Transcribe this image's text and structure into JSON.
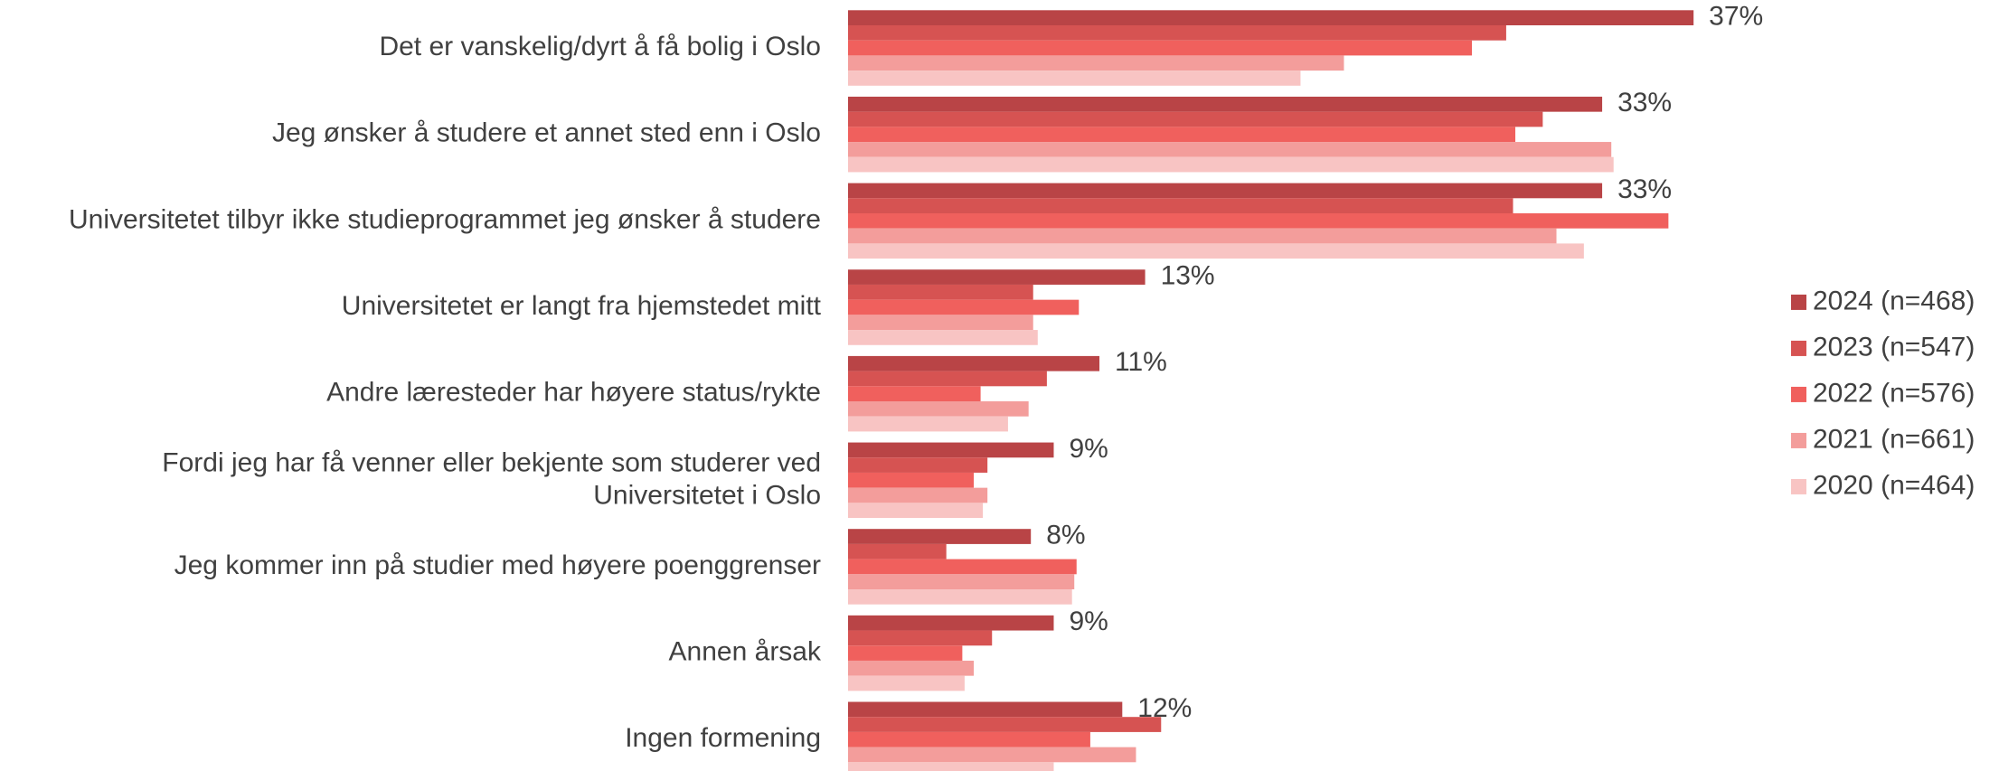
{
  "chart_data": {
    "type": "hbar",
    "categories": [
      "Det er vanskelig/dyrt å få bolig i Oslo",
      "Jeg ønsker å studere et annet sted enn i Oslo",
      "Universitetet tilbyr ikke studieprogrammet jeg ønsker å studere",
      "Universitetet er langt fra hjemstedet mitt",
      "Andre læresteder har høyere status/rykte",
      "Fordi jeg har få venner eller bekjente som studerer ved\nUniversitetet i Oslo",
      "Jeg kommer inn på studier med høyere poenggrenser",
      "Annen årsak",
      "Ingen formening"
    ],
    "xlim": [
      0,
      40
    ],
    "legend": "right",
    "series": [
      {
        "name": "2024 (n=468)",
        "color": "#b94446",
        "values": [
          37,
          33,
          33,
          13,
          11,
          9,
          8,
          9,
          12
        ],
        "value_labels": [
          "37%",
          "33%",
          "33%",
          "13%",
          "11%",
          "9%",
          "8%",
          "9%",
          "12%"
        ]
      },
      {
        "name": "2023 (n=547)",
        "color": "#d65352",
        "values": [
          28.8,
          30.4,
          29.1,
          8.1,
          8.7,
          6.1,
          4.3,
          6.3,
          13.7
        ]
      },
      {
        "name": "2022 (n=576)",
        "color": "#f0605d",
        "values": [
          27.3,
          29.2,
          35.9,
          10.1,
          5.8,
          5.5,
          10.0,
          5.0,
          10.6
        ]
      },
      {
        "name": "2021 (n=661)",
        "color": "#f39d9b",
        "values": [
          21.7,
          33.4,
          31.0,
          8.1,
          7.9,
          6.1,
          9.9,
          5.5,
          12.6
        ]
      },
      {
        "name": "2020 (n=464)",
        "color": "#f8c4c3",
        "values": [
          19.8,
          33.5,
          32.2,
          8.3,
          7.0,
          5.9,
          9.8,
          5.1,
          9.0
        ]
      }
    ]
  }
}
